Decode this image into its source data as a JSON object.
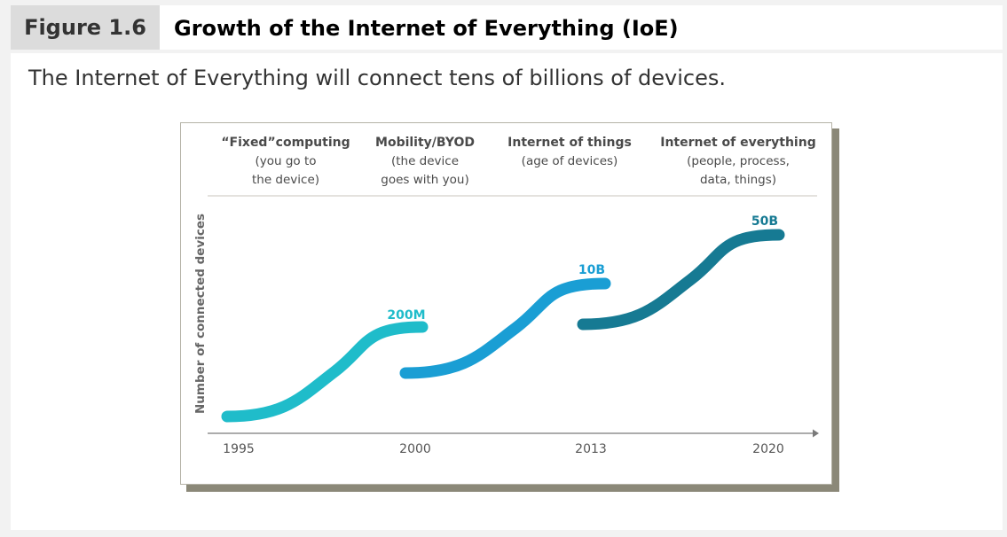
{
  "figure": {
    "number": "Figure 1.6",
    "title": "Growth of the Internet of Everything (IoE)",
    "caption": "The Internet of Everything will connect tens of billions of devices."
  },
  "chart_data": {
    "type": "line",
    "ylabel": "Number of connected devices",
    "x_ticks": [
      "1995",
      "2000",
      "2013",
      "2020"
    ],
    "eras": [
      {
        "title": "“Fixed”computing",
        "lines": [
          "(you go to",
          "the device)"
        ]
      },
      {
        "title": "Mobility/BYOD",
        "lines": [
          "(the device",
          "goes with you)"
        ]
      },
      {
        "title": "Internet of things",
        "lines": [
          "(age of devices)"
        ]
      },
      {
        "title": "Internet of everything",
        "lines": [
          "(people, process,",
          "data, things)"
        ]
      }
    ],
    "series": [
      {
        "period": [
          "1995",
          "2000"
        ],
        "end_label": "200M",
        "color": "#1fbcca"
      },
      {
        "period": [
          "2000",
          "2013"
        ],
        "end_label": "10B",
        "color": "#1a9ed4"
      },
      {
        "period": [
          "2013",
          "2020"
        ],
        "end_label": "50B",
        "color": "#167a93"
      }
    ],
    "grid": false
  }
}
